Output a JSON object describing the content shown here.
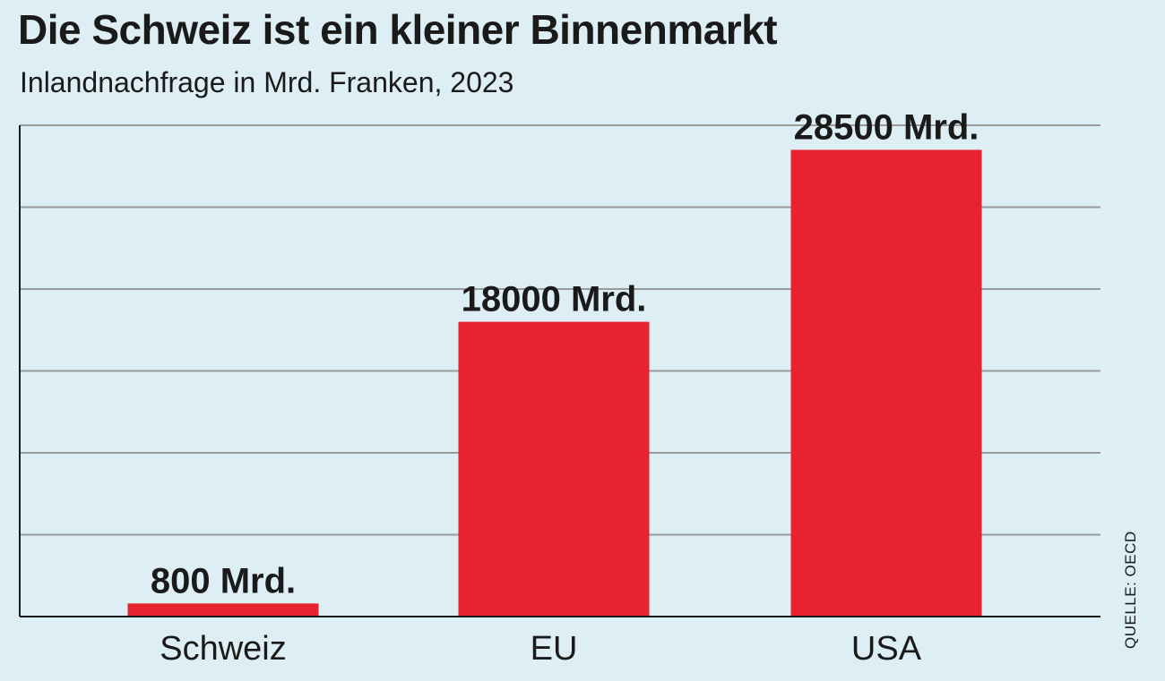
{
  "chart": {
    "title": "Die Schweiz ist ein kleiner Binnenmarkt",
    "subtitle": "Inlandnachfrage in Mrd. Franken, 2023",
    "source": "QUELLE: OECD"
  },
  "chart_data": {
    "type": "bar",
    "title": "Die Schweiz ist ein kleiner Binnenmarkt",
    "subtitle": "Inlandnachfrage in Mrd. Franken, 2023",
    "xlabel": "",
    "ylabel": "",
    "categories": [
      "Schweiz",
      "EU",
      "USA"
    ],
    "values": [
      800,
      18000,
      28500
    ],
    "data_labels": [
      "800 Mrd.",
      "18000 Mrd.",
      "28500 Mrd."
    ],
    "ylim": [
      0,
      30000
    ],
    "grid": true,
    "grid_step": 5000,
    "bar_color": "#e8222f",
    "grid_color": "#9a9a9a",
    "axis_color": "#1a1a1a",
    "background": "#ddeef4",
    "source": "QUELLE: OECD"
  }
}
